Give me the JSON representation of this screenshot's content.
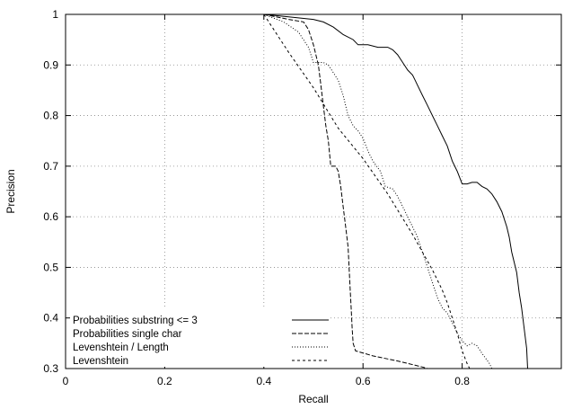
{
  "chart_data": {
    "type": "line",
    "xlabel": "Recall",
    "ylabel": "Precision",
    "xlim": [
      0,
      1
    ],
    "ylim": [
      0.3,
      1
    ],
    "x_ticks": [
      "0",
      "0.2",
      "0.4",
      "0.6",
      "0.8"
    ],
    "y_ticks": [
      "0.3",
      "0.4",
      "0.5",
      "0.6",
      "0.7",
      "0.8",
      "0.9",
      "1"
    ],
    "grid": true,
    "legend_position": "bottom-left",
    "series": [
      {
        "name": "Probabilities substring <= 3",
        "dash": "solid",
        "points": [
          [
            0.4,
            1.0
          ],
          [
            0.45,
            0.995
          ],
          [
            0.5,
            0.99
          ],
          [
            0.52,
            0.985
          ],
          [
            0.54,
            0.975
          ],
          [
            0.56,
            0.96
          ],
          [
            0.58,
            0.95
          ],
          [
            0.59,
            0.94
          ],
          [
            0.61,
            0.94
          ],
          [
            0.63,
            0.935
          ],
          [
            0.65,
            0.935
          ],
          [
            0.66,
            0.93
          ],
          [
            0.67,
            0.92
          ],
          [
            0.68,
            0.905
          ],
          [
            0.69,
            0.89
          ],
          [
            0.7,
            0.88
          ],
          [
            0.705,
            0.87
          ],
          [
            0.71,
            0.86
          ],
          [
            0.72,
            0.84
          ],
          [
            0.73,
            0.82
          ],
          [
            0.74,
            0.8
          ],
          [
            0.75,
            0.78
          ],
          [
            0.76,
            0.76
          ],
          [
            0.77,
            0.74
          ],
          [
            0.78,
            0.71
          ],
          [
            0.79,
            0.69
          ],
          [
            0.8,
            0.665
          ],
          [
            0.81,
            0.665
          ],
          [
            0.82,
            0.668
          ],
          [
            0.83,
            0.668
          ],
          [
            0.84,
            0.66
          ],
          [
            0.85,
            0.655
          ],
          [
            0.86,
            0.645
          ],
          [
            0.87,
            0.63
          ],
          [
            0.88,
            0.61
          ],
          [
            0.89,
            0.58
          ],
          [
            0.895,
            0.56
          ],
          [
            0.9,
            0.53
          ],
          [
            0.91,
            0.49
          ],
          [
            0.915,
            0.45
          ],
          [
            0.92,
            0.42
          ],
          [
            0.925,
            0.38
          ],
          [
            0.93,
            0.34
          ],
          [
            0.932,
            0.3
          ]
        ]
      },
      {
        "name": "Probabilities single char",
        "dash": "dashed",
        "points": [
          [
            0.4,
            1.0
          ],
          [
            0.45,
            0.99
          ],
          [
            0.48,
            0.985
          ],
          [
            0.49,
            0.97
          ],
          [
            0.5,
            0.94
          ],
          [
            0.51,
            0.9
          ],
          [
            0.515,
            0.86
          ],
          [
            0.52,
            0.82
          ],
          [
            0.525,
            0.78
          ],
          [
            0.53,
            0.75
          ],
          [
            0.535,
            0.7
          ],
          [
            0.545,
            0.7
          ],
          [
            0.55,
            0.69
          ],
          [
            0.555,
            0.66
          ],
          [
            0.56,
            0.62
          ],
          [
            0.565,
            0.58
          ],
          [
            0.57,
            0.54
          ],
          [
            0.572,
            0.5
          ],
          [
            0.574,
            0.46
          ],
          [
            0.576,
            0.42
          ],
          [
            0.578,
            0.38
          ],
          [
            0.58,
            0.35
          ],
          [
            0.585,
            0.335
          ],
          [
            0.62,
            0.325
          ],
          [
            0.67,
            0.315
          ],
          [
            0.72,
            0.303
          ],
          [
            0.73,
            0.3
          ]
        ]
      },
      {
        "name": "Levenshtein / Length",
        "dash": "dotted",
        "points": [
          [
            0.4,
            1.0
          ],
          [
            0.44,
            0.985
          ],
          [
            0.47,
            0.965
          ],
          [
            0.49,
            0.935
          ],
          [
            0.5,
            0.905
          ],
          [
            0.52,
            0.905
          ],
          [
            0.53,
            0.9
          ],
          [
            0.55,
            0.87
          ],
          [
            0.56,
            0.84
          ],
          [
            0.57,
            0.8
          ],
          [
            0.58,
            0.78
          ],
          [
            0.59,
            0.77
          ],
          [
            0.6,
            0.755
          ],
          [
            0.61,
            0.73
          ],
          [
            0.62,
            0.71
          ],
          [
            0.635,
            0.69
          ],
          [
            0.645,
            0.66
          ],
          [
            0.66,
            0.655
          ],
          [
            0.67,
            0.64
          ],
          [
            0.68,
            0.62
          ],
          [
            0.69,
            0.6
          ],
          [
            0.7,
            0.58
          ],
          [
            0.71,
            0.56
          ],
          [
            0.72,
            0.53
          ],
          [
            0.73,
            0.5
          ],
          [
            0.74,
            0.47
          ],
          [
            0.75,
            0.44
          ],
          [
            0.76,
            0.42
          ],
          [
            0.77,
            0.41
          ],
          [
            0.78,
            0.39
          ],
          [
            0.79,
            0.37
          ],
          [
            0.8,
            0.355
          ],
          [
            0.81,
            0.345
          ],
          [
            0.82,
            0.35
          ],
          [
            0.83,
            0.345
          ],
          [
            0.84,
            0.33
          ],
          [
            0.855,
            0.31
          ],
          [
            0.86,
            0.3
          ]
        ]
      },
      {
        "name": "Levenshtein",
        "dash": "short-dashed",
        "points": [
          [
            0.4,
            1.0
          ],
          [
            0.45,
            0.925
          ],
          [
            0.5,
            0.855
          ],
          [
            0.55,
            0.775
          ],
          [
            0.6,
            0.715
          ],
          [
            0.65,
            0.645
          ],
          [
            0.7,
            0.565
          ],
          [
            0.72,
            0.53
          ],
          [
            0.74,
            0.495
          ],
          [
            0.76,
            0.455
          ],
          [
            0.77,
            0.43
          ],
          [
            0.78,
            0.4
          ],
          [
            0.79,
            0.37
          ],
          [
            0.8,
            0.335
          ],
          [
            0.81,
            0.31
          ],
          [
            0.815,
            0.3
          ]
        ]
      }
    ]
  }
}
